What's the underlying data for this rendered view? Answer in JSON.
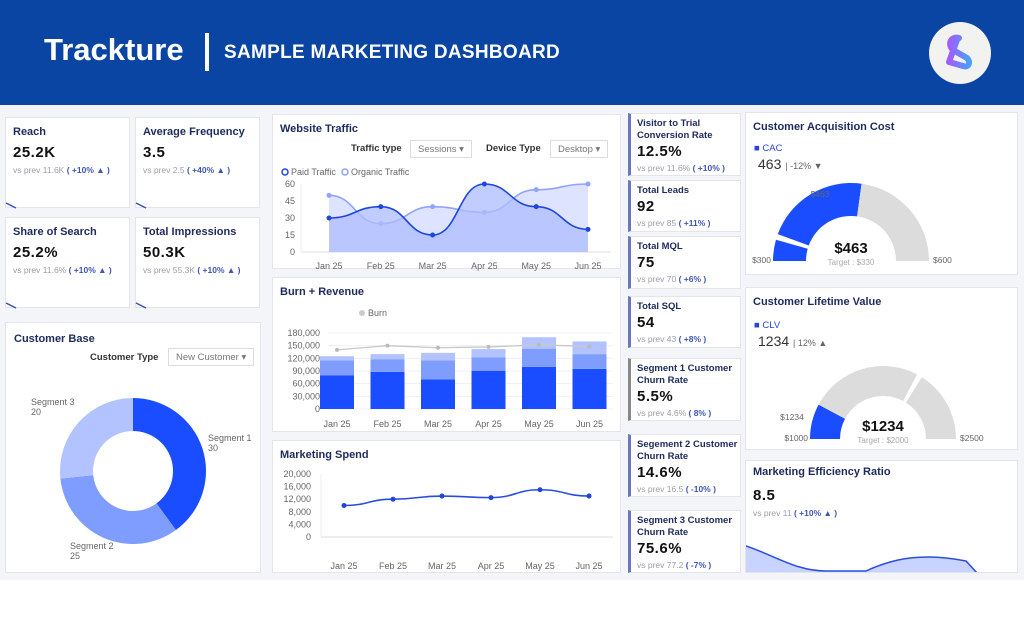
{
  "header": {
    "brand": "Trackture",
    "title": "SAMPLE MARKETING DASHBOARD",
    "logo_icon": "trackture-logo"
  },
  "colors": {
    "header": "#0b45a4",
    "primary": "#1a4dff",
    "mid": "#7f9cff",
    "light": "#b3c3ff",
    "gray": "#dcdcdc"
  },
  "kpis": [
    {
      "title": "Reach",
      "value": "25.2K",
      "prev": "vs prev 11.6K",
      "change": "( +10% ▲ )"
    },
    {
      "title": "Average Frequency",
      "value": "3.5",
      "prev": "vs prev 2.5",
      "change": "( +40% ▲ )"
    },
    {
      "title": "Share of Search",
      "value": "25.2%",
      "prev": "vs prev 11.6%",
      "change": "( +10% ▲ )"
    },
    {
      "title": "Total Impressions",
      "value": "50.3K",
      "prev": "vs prev 55.3K",
      "change": "( +10% ▲ )"
    }
  ],
  "side_kpis": [
    {
      "title": "Visitor to Trial Conversion Rate",
      "value": "12.5%",
      "prev": "vs prev 11.6%",
      "change": "( +10% )"
    },
    {
      "title": "Total Leads",
      "value": "92",
      "prev": "vs prev 85",
      "change": "( +11% )"
    },
    {
      "title": "Total MQL",
      "value": "75",
      "prev": "vs prev 70",
      "change": "( +6% )"
    },
    {
      "title": "Total SQL",
      "value": "54",
      "prev": "vs prev 43",
      "change": "( +8% )"
    },
    {
      "title": "Segment 1 Customer Churn Rate",
      "value": "5.5%",
      "prev": "vs prev 4.6%",
      "change": "( 8% )"
    },
    {
      "title": "Segement 2 Customer Churn Rate",
      "value": "14.6%",
      "prev": "vs prev 16.5",
      "change": "( -10% )"
    },
    {
      "title": "Segment 3 Customer Churn Rate",
      "value": "75.6%",
      "prev": "vs prev 77.2",
      "change": "( -7% )"
    }
  ],
  "customer_base": {
    "title": "Customer Base",
    "filter_label": "Customer Type",
    "filter_value": "New Customer ▾"
  },
  "website_traffic": {
    "title": "Website Traffic",
    "traffic_type_label": "Traffic type",
    "traffic_type_value": "Sessions ▾",
    "device_label": "Device Type",
    "device_value": "Desktop ▾"
  },
  "burn_revenue": {
    "title": "Burn + Revenue"
  },
  "marketing_spend": {
    "title": "Marketing Spend"
  },
  "cac": {
    "title": "Customer Acquisition Cost",
    "legend": "CAC",
    "value": "463",
    "change": "-12%",
    "trend": "▼"
  },
  "clv": {
    "title": "Customer Lifetime Value",
    "legend": "CLV",
    "value": "1234",
    "change": "12%",
    "trend": "▲"
  },
  "mer": {
    "title": "Marketing Efficiency Ratio",
    "value": "8.5",
    "prev": "vs prev 11",
    "change": "( +10% ▲ )"
  },
  "chart_data": [
    {
      "id": "customer_base",
      "type": "pie",
      "categories": [
        "Segment 1",
        "Segment 2",
        "Segment 3"
      ],
      "values": [
        30,
        25,
        20
      ],
      "donut": true
    },
    {
      "id": "website_traffic",
      "type": "area",
      "categories": [
        "Jan 25",
        "Feb 25",
        "Mar 25",
        "Apr 25",
        "May 25",
        "Jun 25"
      ],
      "ylim": [
        0,
        60
      ],
      "yticks": [
        0,
        15,
        30,
        45,
        60
      ],
      "legend": "top-left",
      "series": [
        {
          "name": "Paid Traffic",
          "values": [
            30,
            40,
            15,
            60,
            40,
            20
          ]
        },
        {
          "name": "Organic Traffic",
          "values": [
            50,
            25,
            40,
            35,
            55,
            60
          ]
        }
      ]
    },
    {
      "id": "burn_revenue",
      "type": "bar",
      "stacked": true,
      "categories": [
        "Jan 25",
        "Feb 25",
        "Mar 25",
        "Apr 25",
        "May 25",
        "Jun 25"
      ],
      "ylim": [
        0,
        180000
      ],
      "yticks": [
        "0",
        "30,000",
        "60,000",
        "90,000",
        "120,000",
        "150,000",
        "180,000"
      ],
      "series": [
        {
          "values": [
            80000,
            88000,
            70000,
            90000,
            100000,
            95000
          ]
        },
        {
          "values": [
            35000,
            30000,
            45000,
            32000,
            43000,
            35000
          ]
        },
        {
          "values": [
            10000,
            12000,
            18000,
            20000,
            27000,
            30000
          ]
        },
        {
          "name": "Burn",
          "type": "line",
          "values": [
            140000,
            150000,
            145000,
            147000,
            152000,
            148000
          ]
        }
      ]
    },
    {
      "id": "marketing_spend",
      "type": "line",
      "categories": [
        "Jan 25",
        "Feb 25",
        "Mar 25",
        "Apr 25",
        "May 25",
        "Jun 25"
      ],
      "ylim": [
        0,
        20000
      ],
      "yticks": [
        "0",
        "4,000",
        "8,000",
        "12,000",
        "16,000",
        "20,000"
      ],
      "values": [
        10000,
        12000,
        13000,
        12500,
        15000,
        13000
      ]
    },
    {
      "id": "cac_gauge",
      "type": "gauge",
      "min": 300,
      "max": 600,
      "value": 463,
      "target": 330,
      "labels": {
        "min": "$300",
        "max": "$600",
        "value": "$463",
        "center": "$463",
        "target": "Target : $330"
      }
    },
    {
      "id": "clv_gauge",
      "type": "gauge",
      "min": 1000,
      "max": 2500,
      "value": 1234,
      "target": 2000,
      "labels": {
        "min": "$1000",
        "max": "$2500",
        "value": "$1234",
        "center": "$1234",
        "target": "Target : $2000"
      }
    }
  ]
}
